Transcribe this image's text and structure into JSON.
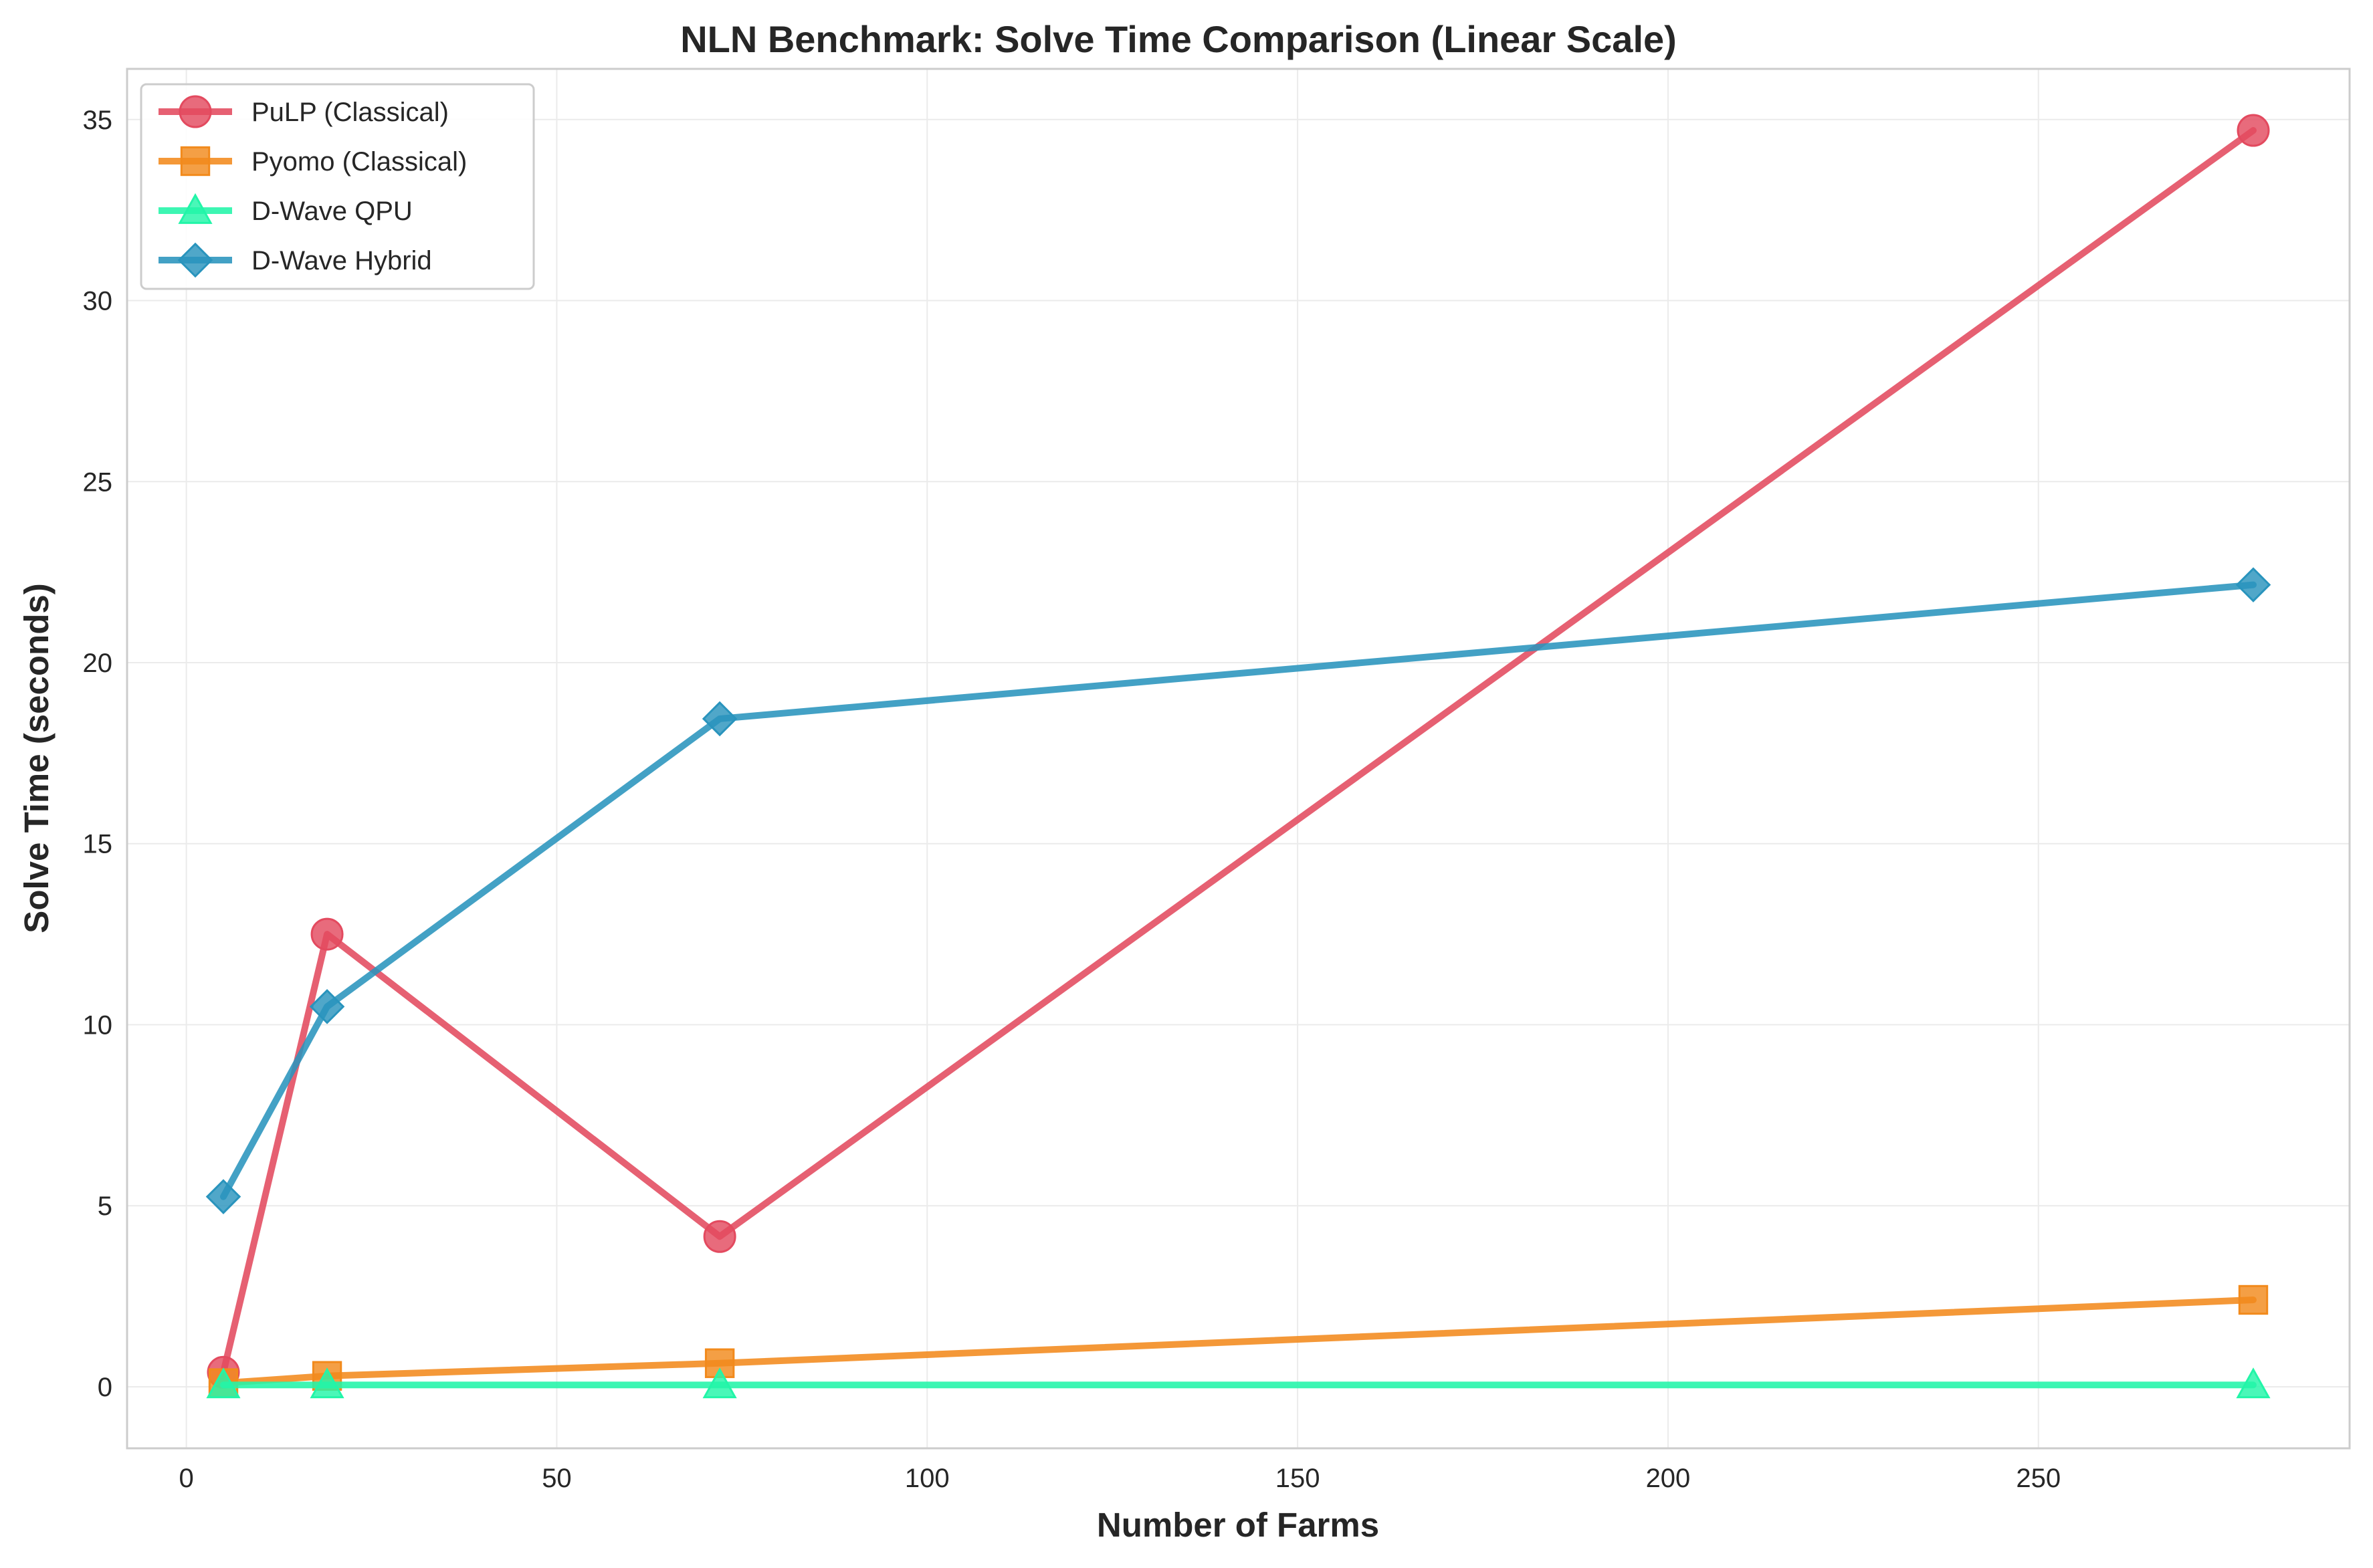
{
  "chart_data": {
    "type": "line",
    "title": "NLN Benchmark: Solve Time Comparison (Linear Scale)",
    "xlabel": "Number of Farms",
    "ylabel": "Solve Time (seconds)",
    "xlim": [
      -8,
      292
    ],
    "ylim": [
      -1.7,
      36.4
    ],
    "xticks": [
      0,
      50,
      100,
      150,
      200,
      250
    ],
    "yticks": [
      0,
      5,
      10,
      15,
      20,
      25,
      30,
      35
    ],
    "grid": true,
    "legend_position": "top-left",
    "x": [
      5,
      19,
      72,
      279
    ],
    "series": [
      {
        "name": "PuLP (Classical)",
        "marker": "circle",
        "color": "#e34a5f",
        "values": [
          0.4,
          12.5,
          4.15,
          34.7
        ]
      },
      {
        "name": "Pyomo (Classical)",
        "marker": "square",
        "color": "#f28a1c",
        "values": [
          0.1,
          0.3,
          0.65,
          2.4
        ]
      },
      {
        "name": "D-Wave QPU",
        "marker": "triangle",
        "color": "#22f5a8",
        "values": [
          0.05,
          0.05,
          0.05,
          0.05
        ]
      },
      {
        "name": "D-Wave Hybrid",
        "marker": "diamond",
        "color": "#2994bd",
        "values": [
          5.25,
          10.5,
          18.45,
          22.15
        ]
      }
    ]
  }
}
